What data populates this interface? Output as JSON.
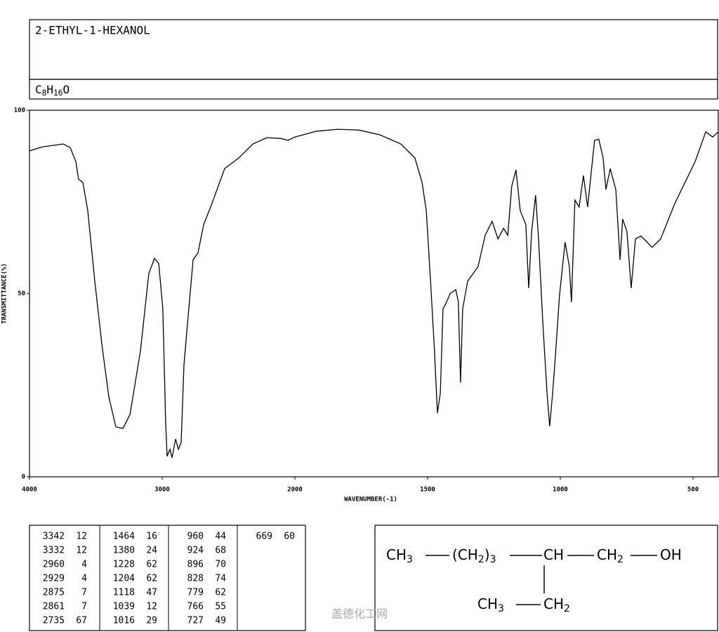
{
  "header": {
    "title": "2-ETHYL-1-HEXANOL",
    "formula": "C8H16O"
  },
  "chart_data": {
    "type": "line",
    "color": "#000000",
    "x_label": "WAVENUMBER(-1)",
    "y_label": "TRANSMITTANCE(%)",
    "xlim": [
      4000,
      405
    ],
    "xticks": [
      4000,
      3000,
      2000,
      1500,
      1000,
      500
    ],
    "ylim": [
      0,
      100
    ],
    "yticks": [
      0,
      50,
      100
    ],
    "x": [
      4000,
      3905,
      3746,
      3693,
      3651,
      3630,
      3598,
      3561,
      3508,
      3455,
      3402,
      3349,
      3296,
      3243,
      3164,
      3101,
      3058,
      3026,
      2995,
      2974,
      2963,
      2942,
      2926,
      2899,
      2878,
      2857,
      2836,
      2804,
      2767,
      2730,
      2688,
      2635,
      2529,
      2423,
      2317,
      2212,
      2106,
      2053,
      2000,
      1918,
      1839,
      1759,
      1680,
      1601,
      1548,
      1521,
      1505,
      1489,
      1474,
      1463,
      1452,
      1442,
      1431,
      1415,
      1394,
      1384,
      1376,
      1368,
      1349,
      1310,
      1283,
      1257,
      1235,
      1214,
      1198,
      1183,
      1167,
      1151,
      1130,
      1119,
      1108,
      1093,
      1082,
      1066,
      1050,
      1040,
      1029,
      1019,
      1003,
      982,
      966,
      958,
      945,
      929,
      913,
      897,
      871,
      855,
      839,
      828,
      812,
      791,
      775,
      765,
      749,
      733,
      717,
      696,
      654,
      622,
      569,
      492,
      452,
      426,
      405
    ],
    "values": [
      88.9,
      90,
      90.8,
      89.8,
      86,
      81.2,
      80.3,
      72.6,
      53.4,
      36.2,
      21.8,
      13.6,
      13.2,
      17,
      34.3,
      55.4,
      59.6,
      58.2,
      45.8,
      15.1,
      5.6,
      7.5,
      5.2,
      10.3,
      7.5,
      9.4,
      30.5,
      43.9,
      59.2,
      61.1,
      68.8,
      73.6,
      84.1,
      87,
      90.8,
      92.5,
      92.3,
      91.8,
      92.7,
      94.3,
      94.8,
      94.6,
      93.3,
      90.8,
      87,
      80.3,
      72.6,
      53.4,
      34.3,
      17.4,
      22.8,
      45.8,
      47.3,
      50,
      51.1,
      47.7,
      25.7,
      45.8,
      53.4,
      57.3,
      65.9,
      69.7,
      64.9,
      67.8,
      65.9,
      79.3,
      83.7,
      72.6,
      68.8,
      51.5,
      67,
      76.8,
      64.9,
      42,
      22.8,
      13.8,
      22.8,
      32.4,
      49.6,
      64,
      57.3,
      47.7,
      75.5,
      73.6,
      82.2,
      73.6,
      91.8,
      92.1,
      87,
      78.4,
      84.1,
      78.4,
      59.2,
      70.3,
      66.9,
      51.5,
      64.9,
      65.7,
      62.6,
      64.9,
      74.5,
      86,
      94.1,
      92.7,
      94.1
    ]
  },
  "peak_table": {
    "columns": [
      [
        [
          "3342",
          "12"
        ],
        [
          "3332",
          "12"
        ],
        [
          "2960",
          "4"
        ],
        [
          "2929",
          "4"
        ],
        [
          "2875",
          "7"
        ],
        [
          "2861",
          "7"
        ],
        [
          "2735",
          "67"
        ]
      ],
      [
        [
          "1464",
          "16"
        ],
        [
          "1380",
          "24"
        ],
        [
          "1228",
          "62"
        ],
        [
          "1204",
          "62"
        ],
        [
          "1118",
          "47"
        ],
        [
          "1039",
          "12"
        ],
        [
          "1016",
          "29"
        ]
      ],
      [
        [
          "960",
          "44"
        ],
        [
          "924",
          "68"
        ],
        [
          "896",
          "70"
        ],
        [
          "828",
          "74"
        ],
        [
          "779",
          "62"
        ],
        [
          "766",
          "55"
        ],
        [
          "727",
          "49"
        ]
      ],
      [
        [
          "669",
          "60"
        ]
      ]
    ]
  },
  "structure": {
    "main": [
      "CH3",
      "(CH2)3",
      "CH",
      "CH2",
      "OH"
    ],
    "branch": [
      "CH3",
      "CH2"
    ]
  },
  "watermark": "盖德化工网"
}
